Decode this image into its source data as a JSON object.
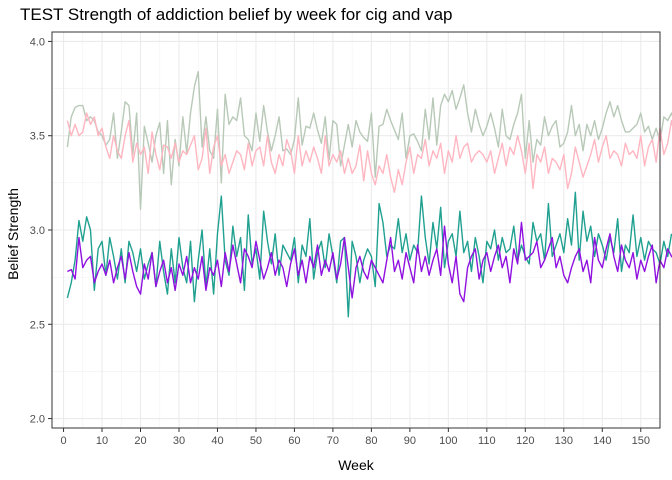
{
  "chart_data": {
    "type": "line",
    "title": "TEST Strength of addiction belief by week for cig and vap",
    "xlabel": "Week",
    "ylabel": "Belief Strength",
    "xlim": [
      -3,
      155
    ],
    "ylim": [
      1.95,
      4.05
    ],
    "x_ticks": [
      0,
      10,
      20,
      30,
      40,
      50,
      60,
      70,
      80,
      90,
      100,
      110,
      120,
      130,
      140,
      150
    ],
    "x_tick_labels": [
      "0",
      "10",
      "20",
      "30",
      "40",
      "50",
      "60",
      "70",
      "80",
      "90",
      "100",
      "110",
      "120",
      "130",
      "140",
      "150"
    ],
    "y_ticks": [
      2.0,
      2.5,
      3.0,
      3.5,
      4.0
    ],
    "y_tick_labels": [
      "2.0",
      "2.5",
      "3.0",
      "3.5",
      "4.0"
    ],
    "grid": true,
    "legend": "none",
    "x_start": 1,
    "series": [
      {
        "color": "#b8c9b8",
        "values": [
          3.44,
          3.6,
          3.65,
          3.66,
          3.66,
          3.58,
          3.6,
          3.58,
          3.52,
          3.5,
          3.45,
          3.48,
          3.62,
          3.38,
          3.52,
          3.68,
          3.66,
          3.4,
          3.62,
          3.11,
          3.55,
          3.46,
          3.36,
          3.5,
          3.57,
          3.3,
          3.58,
          3.24,
          3.48,
          3.34,
          3.6,
          3.41,
          3.62,
          3.76,
          3.84,
          3.44,
          3.6,
          3.42,
          3.38,
          3.64,
          3.25,
          3.72,
          3.56,
          3.6,
          3.58,
          3.7,
          3.5,
          3.48,
          3.42,
          3.62,
          3.47,
          3.66,
          3.52,
          3.42,
          3.5,
          3.6,
          3.42,
          3.43,
          3.4,
          3.48,
          3.7,
          3.45,
          3.55,
          3.54,
          3.62,
          3.53,
          3.46,
          3.6,
          3.37,
          3.58,
          3.56,
          3.34,
          3.45,
          3.56,
          3.44,
          3.58,
          3.52,
          3.49,
          3.47,
          3.62,
          3.28,
          3.55,
          3.56,
          3.64,
          3.58,
          3.53,
          3.48,
          3.62,
          3.38,
          3.5,
          3.51,
          3.47,
          3.42,
          3.64,
          3.48,
          3.7,
          3.45,
          3.66,
          3.72,
          3.68,
          3.74,
          3.64,
          3.7,
          3.77,
          3.62,
          3.52,
          3.64,
          3.56,
          3.5,
          3.55,
          3.62,
          3.54,
          3.44,
          3.64,
          3.5,
          3.48,
          3.56,
          3.62,
          3.72,
          3.38,
          3.58,
          3.36,
          3.48,
          3.45,
          3.6,
          3.5,
          3.55,
          3.58,
          3.44,
          3.46,
          3.52,
          3.66,
          3.5,
          3.56,
          3.42,
          3.56,
          3.5,
          3.58,
          3.48,
          3.54,
          3.62,
          3.68,
          3.6,
          3.66,
          3.58,
          3.52,
          3.52,
          3.54,
          3.56,
          3.62,
          3.52,
          3.55,
          3.48,
          3.54,
          3.47,
          3.6,
          3.58,
          3.62,
          3.56,
          3.48,
          3.68,
          3.55
        ]
      },
      {
        "color": "#ffb6c1",
        "values": [
          3.58,
          3.5,
          3.56,
          3.5,
          3.52,
          3.62,
          3.56,
          3.6,
          3.5,
          3.54,
          3.44,
          3.38,
          3.5,
          3.42,
          3.38,
          3.5,
          3.58,
          3.36,
          3.46,
          3.4,
          3.44,
          3.3,
          3.52,
          3.4,
          3.32,
          3.45,
          3.44,
          3.38,
          3.46,
          3.36,
          3.42,
          3.4,
          3.45,
          3.5,
          3.32,
          3.38,
          3.54,
          3.3,
          3.44,
          3.5,
          3.34,
          3.4,
          3.3,
          3.36,
          3.42,
          3.4,
          3.32,
          3.46,
          3.34,
          3.42,
          3.44,
          3.34,
          3.5,
          3.36,
          3.3,
          3.4,
          3.34,
          3.48,
          3.42,
          3.3,
          3.5,
          3.34,
          3.42,
          3.36,
          3.44,
          3.38,
          3.3,
          3.5,
          3.34,
          3.4,
          3.36,
          3.42,
          3.3,
          3.38,
          3.3,
          3.34,
          3.45,
          3.26,
          3.42,
          3.3,
          3.24,
          3.34,
          3.3,
          3.4,
          3.28,
          3.2,
          3.32,
          3.24,
          3.36,
          3.44,
          3.3,
          3.4,
          3.38,
          3.48,
          3.34,
          3.42,
          3.38,
          3.46,
          3.3,
          3.42,
          3.36,
          3.5,
          3.38,
          3.44,
          3.46,
          3.36,
          3.4,
          3.42,
          3.4,
          3.36,
          3.42,
          3.3,
          3.38,
          3.46,
          3.34,
          3.44,
          3.4,
          3.5,
          3.42,
          3.3,
          3.46,
          3.22,
          3.4,
          3.36,
          3.44,
          3.3,
          3.38,
          3.36,
          3.32,
          3.4,
          3.22,
          3.3,
          3.44,
          3.36,
          3.28,
          3.34,
          3.4,
          3.48,
          3.36,
          3.44,
          3.5,
          3.38,
          3.42,
          3.4,
          3.34,
          3.46,
          3.4,
          3.42,
          3.38,
          3.5,
          3.34,
          3.44,
          3.48,
          3.36,
          3.54,
          3.4,
          3.46,
          3.58,
          3.48,
          3.44,
          3.56
        ]
      },
      {
        "color": "#20a090",
        "values": [
          2.64,
          2.72,
          2.84,
          3.05,
          2.94,
          3.07,
          3.0,
          2.68,
          2.9,
          2.94,
          2.76,
          2.96,
          2.86,
          2.74,
          2.9,
          2.72,
          2.94,
          2.88,
          2.78,
          2.9,
          2.74,
          2.82,
          2.88,
          2.7,
          2.94,
          2.78,
          2.66,
          2.9,
          2.72,
          2.96,
          2.8,
          2.72,
          2.94,
          2.62,
          2.84,
          3.0,
          2.7,
          2.9,
          2.66,
          2.98,
          3.18,
          2.84,
          2.76,
          3.02,
          2.86,
          2.96,
          2.68,
          3.08,
          2.82,
          2.9,
          2.74,
          3.1,
          2.94,
          2.82,
          2.98,
          2.76,
          2.92,
          2.88,
          2.84,
          2.96,
          2.72,
          2.92,
          2.86,
          3.06,
          2.74,
          2.88,
          2.94,
          2.8,
          2.98,
          2.86,
          2.72,
          2.94,
          2.96,
          2.54,
          2.94,
          2.86,
          2.72,
          2.84,
          2.9,
          2.86,
          2.7,
          3.14,
          3.04,
          2.86,
          2.92,
          2.9,
          3.06,
          2.88,
          2.98,
          2.84,
          2.92,
          2.88,
          3.18,
          2.96,
          2.82,
          3.04,
          2.9,
          3.12,
          2.8,
          2.94,
          2.98,
          2.86,
          3.1,
          2.88,
          2.94,
          2.78,
          2.96,
          2.86,
          2.72,
          2.94,
          2.9,
          3.0,
          2.84,
          2.96,
          2.88,
          2.9,
          3.02,
          2.84,
          2.92,
          2.86,
          2.82,
          3.04,
          2.94,
          2.98,
          2.84,
          3.14,
          2.86,
          2.92,
          2.98,
          2.88,
          3.06,
          2.92,
          3.2,
          2.84,
          3.1,
          2.94,
          3.02,
          2.86,
          2.98,
          2.92,
          2.84,
          2.96,
          2.88,
          3.06,
          2.78,
          2.92,
          2.88,
          3.08,
          2.86,
          2.96,
          2.84,
          2.94,
          2.9,
          2.88,
          2.82,
          2.94,
          2.86,
          2.98
        ]
      },
      {
        "color": "#9010e0",
        "values": [
          2.78,
          2.79,
          2.74,
          2.96,
          2.8,
          2.84,
          2.86,
          2.72,
          2.78,
          2.82,
          2.76,
          2.84,
          2.72,
          2.8,
          2.86,
          2.74,
          2.88,
          2.78,
          2.7,
          2.66,
          2.82,
          2.74,
          2.88,
          2.7,
          2.78,
          2.84,
          2.72,
          2.8,
          2.68,
          2.82,
          2.76,
          2.86,
          2.72,
          2.8,
          2.74,
          2.86,
          2.68,
          2.8,
          2.76,
          2.84,
          2.7,
          2.88,
          2.78,
          2.92,
          2.82,
          2.72,
          2.9,
          2.86,
          2.8,
          2.94,
          2.84,
          2.74,
          2.8,
          2.88,
          2.76,
          2.84,
          2.8,
          2.7,
          2.82,
          2.9,
          2.76,
          2.84,
          2.72,
          2.86,
          2.8,
          2.92,
          2.76,
          2.84,
          2.78,
          2.88,
          2.74,
          2.82,
          2.96,
          2.8,
          2.64,
          2.8,
          2.86,
          2.78,
          2.74,
          2.84,
          2.8,
          2.76,
          2.72,
          2.84,
          2.96,
          2.78,
          2.84,
          2.74,
          2.88,
          2.8,
          2.72,
          2.92,
          2.78,
          2.86,
          2.76,
          2.84,
          2.9,
          2.76,
          3.02,
          2.82,
          2.72,
          2.86,
          2.66,
          2.62,
          2.8,
          2.86,
          2.9,
          2.74,
          2.84,
          2.88,
          2.78,
          2.86,
          2.92,
          2.8,
          2.86,
          2.72,
          2.9,
          2.82,
          3.04,
          2.84,
          2.86,
          2.88,
          2.94,
          2.8,
          2.84,
          2.9,
          2.96,
          2.8,
          2.86,
          2.76,
          2.72,
          2.8,
          2.86,
          2.9,
          2.78,
          2.84,
          2.72,
          2.96,
          2.84,
          2.8,
          2.9,
          2.98,
          2.86,
          2.78,
          2.92,
          2.84,
          2.8,
          2.88,
          2.74,
          2.84,
          2.78,
          2.86,
          2.92,
          2.72,
          2.84,
          2.8,
          2.9,
          2.86,
          2.84,
          2.88
        ]
      }
    ]
  }
}
